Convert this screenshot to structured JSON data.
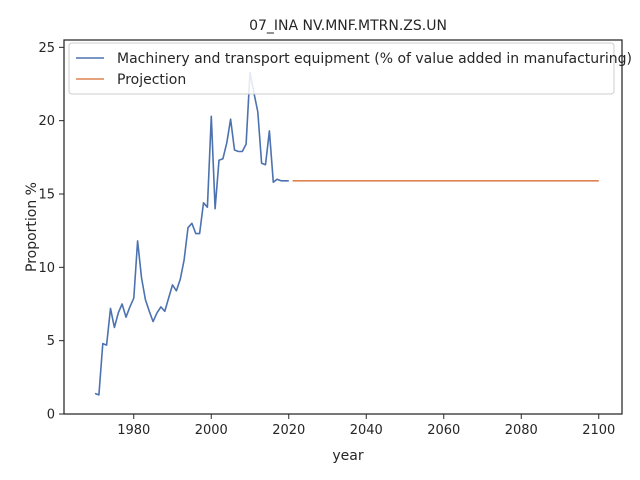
{
  "chart_data": {
    "type": "line",
    "title": "07_INA NV.MNF.MTRN.ZS.UN",
    "xlabel": "year",
    "ylabel": "Proportion %",
    "xlim": [
      1962,
      2106
    ],
    "ylim": [
      0,
      25.5
    ],
    "xticks": [
      1980,
      2000,
      2020,
      2040,
      2060,
      2080,
      2100
    ],
    "yticks": [
      0,
      5,
      10,
      15,
      20,
      25
    ],
    "grid": false,
    "legend_position": "top-left",
    "series": [
      {
        "name": "Machinery and transport equipment (% of value added in manufacturing)",
        "color": "#4c72b0",
        "x": [
          1970,
          1971,
          1972,
          1973,
          1974,
          1975,
          1976,
          1977,
          1978,
          1979,
          1980,
          1981,
          1982,
          1983,
          1984,
          1985,
          1986,
          1987,
          1988,
          1989,
          1990,
          1991,
          1992,
          1993,
          1994,
          1995,
          1996,
          1997,
          1998,
          1999,
          2000,
          2001,
          2002,
          2003,
          2004,
          2005,
          2006,
          2007,
          2008,
          2009,
          2010,
          2011,
          2012,
          2013,
          2014,
          2015,
          2016,
          2017,
          2018,
          2019,
          2020
        ],
        "y": [
          1.4,
          1.3,
          4.8,
          4.7,
          7.2,
          5.9,
          6.9,
          7.5,
          6.6,
          7.3,
          7.9,
          11.8,
          9.3,
          7.8,
          7.0,
          6.3,
          6.9,
          7.3,
          7.0,
          7.9,
          8.8,
          8.4,
          9.2,
          10.5,
          12.7,
          13.0,
          12.3,
          12.3,
          14.4,
          14.1,
          20.3,
          14.0,
          17.3,
          17.4,
          18.5,
          20.1,
          18.0,
          17.9,
          17.9,
          18.4,
          23.3,
          21.9,
          20.6,
          17.1,
          17.0,
          19.3,
          15.8,
          16.0,
          15.9,
          15.9,
          15.9
        ]
      },
      {
        "name": "Projection",
        "color": "#dd8452",
        "x": [
          2021,
          2100
        ],
        "y": [
          15.9,
          15.9
        ]
      }
    ]
  }
}
